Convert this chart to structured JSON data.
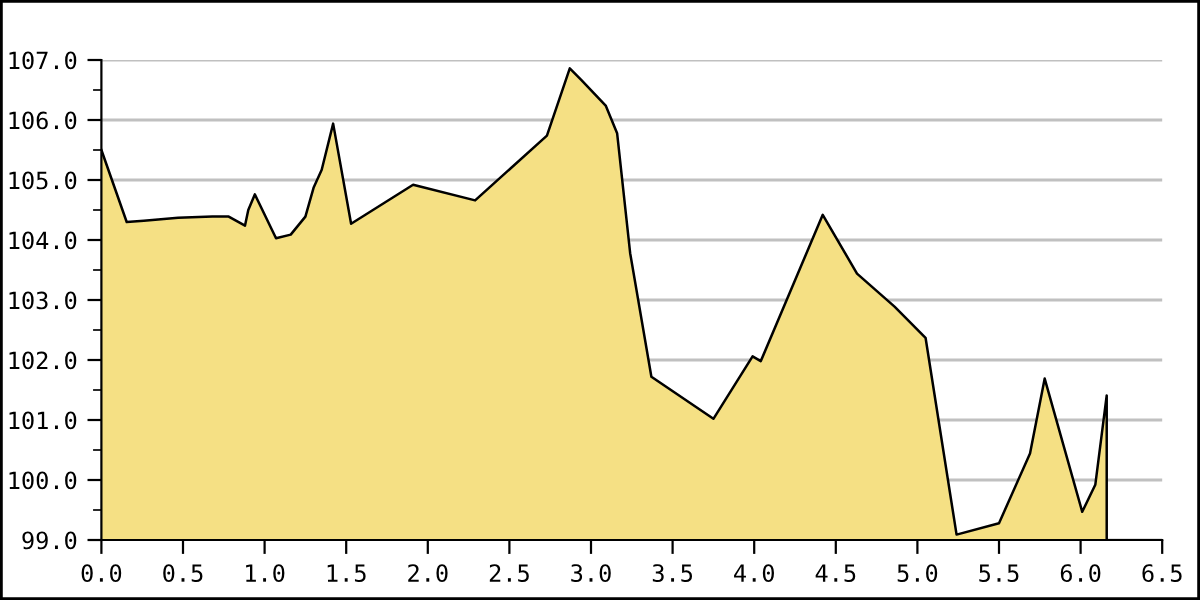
{
  "chart_data": {
    "type": "area",
    "x": [
      0.0,
      0.155,
      0.26,
      0.47,
      0.68,
      0.78,
      0.88,
      0.9,
      0.94,
      1.07,
      1.16,
      1.25,
      1.3,
      1.35,
      1.42,
      1.53,
      1.91,
      2.29,
      2.73,
      2.87,
      2.94,
      3.09,
      3.16,
      3.24,
      3.37,
      3.75,
      3.99,
      4.04,
      4.42,
      4.63,
      4.86,
      5.05,
      5.24,
      5.5,
      5.69,
      5.78,
      6.01,
      6.09,
      6.16
    ],
    "series": [
      {
        "color": "#f5e084",
        "values": [
          105.5,
          104.3,
          104.32,
          104.37,
          104.39,
          104.39,
          104.24,
          104.5,
          104.76,
          104.03,
          104.09,
          104.39,
          104.87,
          105.17,
          105.94,
          104.27,
          104.92,
          104.66,
          105.74,
          106.86,
          106.67,
          106.24,
          105.78,
          103.78,
          101.72,
          101.02,
          102.06,
          101.98,
          104.42,
          103.44,
          102.89,
          102.37,
          99.09,
          99.28,
          100.44,
          101.69,
          99.47,
          99.92,
          101.41
        ]
      }
    ],
    "xlim": [
      0,
      6.5
    ],
    "ylim": [
      99,
      107
    ],
    "xticks": [
      {
        "value": 0,
        "label": "0.0"
      },
      {
        "value": 0.5,
        "label": "0.5"
      },
      {
        "value": 1,
        "label": "1.0"
      },
      {
        "value": 1.5,
        "label": "1.5"
      },
      {
        "value": 2,
        "label": "2.0"
      },
      {
        "value": 2.5,
        "label": "2.5"
      },
      {
        "value": 3,
        "label": "3.0"
      },
      {
        "value": 3.5,
        "label": "3.5"
      },
      {
        "value": 4,
        "label": "4.0"
      },
      {
        "value": 4.5,
        "label": "4.5"
      },
      {
        "value": 5,
        "label": "5.0"
      },
      {
        "value": 5.5,
        "label": "5.5"
      },
      {
        "value": 6,
        "label": "6.0"
      },
      {
        "value": 6.5,
        "label": "6.5"
      }
    ],
    "yticks": [
      {
        "value": 99,
        "label": "99.0"
      },
      {
        "value": 100,
        "label": "100.0"
      },
      {
        "value": 101,
        "label": "101.0"
      },
      {
        "value": 102,
        "label": "102.0"
      },
      {
        "value": 103,
        "label": "103.0"
      },
      {
        "value": 104,
        "label": "104.0"
      },
      {
        "value": 105,
        "label": "105.0"
      },
      {
        "value": 106,
        "label": "106.0"
      },
      {
        "value": 107,
        "label": "107.0"
      }
    ],
    "grid": "y"
  }
}
